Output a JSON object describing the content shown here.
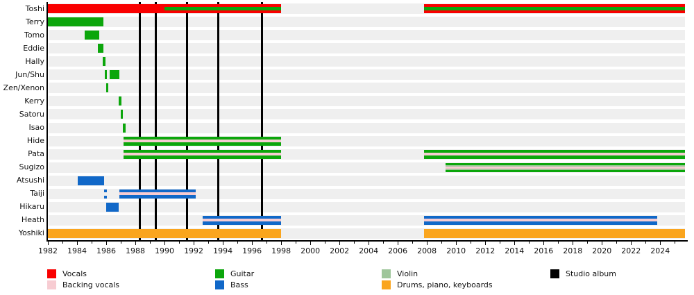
{
  "chart_data": {
    "type": "bar",
    "subtype": "band-members-gantt-timeline",
    "title": "",
    "x_axis": {
      "min": 1982,
      "max": 2025.7,
      "minor_tick_interval": 1,
      "label_interval": 2,
      "labels": [
        "1982",
        "1984",
        "1986",
        "1988",
        "1990",
        "1992",
        "1994",
        "1996",
        "1998",
        "2000",
        "2002",
        "2004",
        "2006",
        "2008",
        "2010",
        "2012",
        "2014",
        "2016",
        "2018",
        "2020",
        "2022",
        "2024"
      ]
    },
    "colors": {
      "vocals": "#f90000",
      "backing": "#f7ccd2",
      "guitar": "#0ca60c",
      "bass": "#1168c8",
      "violin": "#9fc69b",
      "drums": "#faa51e",
      "album": "#000000",
      "row_band": "#efefef"
    },
    "members": [
      {
        "name": "Toshi",
        "segments": [
          {
            "s": 1982.0,
            "e": 1998.0,
            "c": "vocals",
            "stripe": {
              "type": "guitar",
              "s": 1990.0
            }
          },
          {
            "s": 2007.8,
            "e": 2025.7,
            "c": "vocals",
            "stripe": {
              "type": "guitar"
            }
          }
        ]
      },
      {
        "name": "Terry",
        "segments": [
          {
            "s": 1982.0,
            "e": 1985.8,
            "c": "guitar"
          }
        ]
      },
      {
        "name": "Tomo",
        "segments": [
          {
            "s": 1984.5,
            "e": 1985.5,
            "c": "guitar"
          }
        ]
      },
      {
        "name": "Eddie",
        "segments": [
          {
            "s": 1985.45,
            "e": 1985.8,
            "c": "guitar"
          }
        ]
      },
      {
        "name": "Hally",
        "segments": [
          {
            "s": 1985.75,
            "e": 1985.95,
            "c": "guitar"
          }
        ]
      },
      {
        "name": "Jun/Shu",
        "segments": [
          {
            "s": 1985.9,
            "e": 1986.05,
            "c": "guitar"
          },
          {
            "s": 1986.25,
            "e": 1986.9,
            "c": "guitar"
          }
        ]
      },
      {
        "name": "Zen/Xenon",
        "segments": [
          {
            "s": 1986.0,
            "e": 1986.15,
            "c": "guitar"
          }
        ]
      },
      {
        "name": "Kerry",
        "segments": [
          {
            "s": 1986.85,
            "e": 1987.05,
            "c": "guitar"
          }
        ]
      },
      {
        "name": "Satoru",
        "segments": [
          {
            "s": 1987.0,
            "e": 1987.15,
            "c": "guitar"
          }
        ]
      },
      {
        "name": "Isao",
        "segments": [
          {
            "s": 1987.15,
            "e": 1987.35,
            "c": "guitar"
          }
        ]
      },
      {
        "name": "Hide",
        "segments": [
          {
            "s": 1987.2,
            "e": 1998.0,
            "c": "guitar",
            "stripe": {
              "type": "backing"
            }
          }
        ]
      },
      {
        "name": "Pata",
        "segments": [
          {
            "s": 1987.2,
            "e": 1998.0,
            "c": "guitar",
            "stripe": {
              "type": "backing"
            }
          },
          {
            "s": 2007.8,
            "e": 2025.7,
            "c": "guitar",
            "stripe": {
              "type": "backing"
            }
          }
        ]
      },
      {
        "name": "Sugizo",
        "segments": [
          {
            "s": 2009.3,
            "e": 2025.7,
            "c": "guitar",
            "stripe": {
              "type": "violin_backing"
            }
          }
        ]
      },
      {
        "name": "Atsushi",
        "segments": [
          {
            "s": 1984.05,
            "e": 1985.85,
            "c": "bass"
          }
        ]
      },
      {
        "name": "Taiji",
        "segments": [
          {
            "s": 1985.85,
            "e": 1986.05,
            "c": "bass",
            "style": "dashed"
          },
          {
            "s": 1986.9,
            "e": 1992.15,
            "c": "bass",
            "stripe": {
              "type": "backing"
            }
          }
        ]
      },
      {
        "name": "Hikaru",
        "segments": [
          {
            "s": 1986.0,
            "e": 1986.85,
            "c": "bass"
          }
        ]
      },
      {
        "name": "Heath",
        "segments": [
          {
            "s": 1992.6,
            "e": 1998.0,
            "c": "bass",
            "stripe": {
              "type": "backing"
            }
          },
          {
            "s": 2007.8,
            "e": 2023.8,
            "c": "bass",
            "stripe": {
              "type": "backing"
            }
          }
        ]
      },
      {
        "name": "Yoshiki",
        "segments": [
          {
            "s": 1982.0,
            "e": 1998.0,
            "c": "drums"
          },
          {
            "s": 2007.8,
            "e": 2025.7,
            "c": "drums"
          }
        ]
      }
    ],
    "albums": {
      "marker": "vertical-black-line",
      "years": [
        1988.3,
        1989.4,
        1991.55,
        1993.7,
        1996.7
      ]
    },
    "legend": {
      "columns": [
        {
          "items": [
            {
              "label": "Vocals",
              "color": "vocals"
            },
            {
              "label": "Backing vocals",
              "color": "backing"
            }
          ]
        },
        {
          "items": [
            {
              "label": "Guitar",
              "color": "guitar"
            },
            {
              "label": "Bass",
              "color": "bass"
            }
          ]
        },
        {
          "items": [
            {
              "label": "Violin",
              "color": "violin"
            },
            {
              "label": "Drums, piano, keyboards",
              "color": "drums"
            }
          ]
        },
        {
          "items": [
            {
              "label": "Studio album",
              "color": "album"
            }
          ]
        }
      ]
    }
  }
}
